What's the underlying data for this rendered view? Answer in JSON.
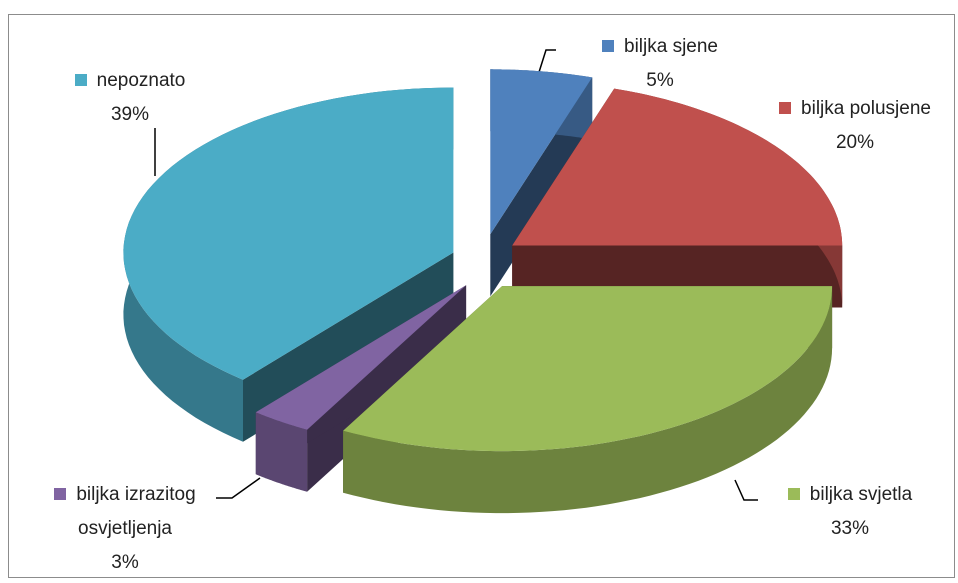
{
  "chart_data": {
    "type": "pie3d",
    "categories": [
      "biljka sjene",
      "biljka polusjene",
      "biljka svjetla",
      "biljka izrazitog osvjetljenja",
      "nepoznato"
    ],
    "values": [
      5,
      20,
      33,
      3,
      39
    ],
    "value_labels": [
      "5%",
      "20%",
      "33%",
      "3%",
      "39%"
    ],
    "colors": [
      "#4f81bd",
      "#c0504d",
      "#9bbb59",
      "#8064a2",
      "#4bacc6"
    ],
    "exploded": true
  }
}
